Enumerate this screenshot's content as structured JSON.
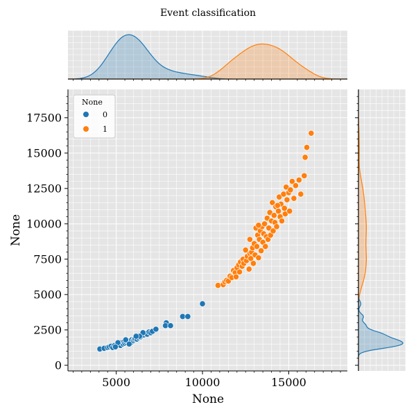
{
  "chart_data": {
    "type": "scatter",
    "title": "Event classification",
    "xlabel": "None",
    "ylabel": "None",
    "xlim": [
      2200,
      18400
    ],
    "ylim": [
      -400,
      19500
    ],
    "xticks": [
      5000,
      10000,
      15000
    ],
    "yticks": [
      0,
      2500,
      5000,
      7500,
      10000,
      12500,
      15000,
      17500
    ],
    "xtick_labels": [
      "5000",
      "10000",
      "15000"
    ],
    "ytick_labels": [
      "0",
      "2500",
      "5000",
      "7500",
      "10000",
      "12500",
      "15000",
      "17500"
    ],
    "grid": true,
    "legend": {
      "title": "None",
      "placement": "top-left"
    },
    "colors": {
      "0": "#1f77b4",
      "1": "#ff7f0e",
      "background": "#e5e5e5"
    },
    "series": [
      {
        "name": "0",
        "color": "#1f77b4",
        "points": [
          [
            4050,
            1150
          ],
          [
            4300,
            1200
          ],
          [
            4500,
            1250
          ],
          [
            4600,
            1300
          ],
          [
            4700,
            1350
          ],
          [
            4800,
            1250
          ],
          [
            4900,
            1400
          ],
          [
            5000,
            1350
          ],
          [
            5100,
            1450
          ],
          [
            5200,
            1500
          ],
          [
            5250,
            1400
          ],
          [
            5300,
            1600
          ],
          [
            5400,
            1500
          ],
          [
            5450,
            1650
          ],
          [
            5500,
            1550
          ],
          [
            5600,
            1600
          ],
          [
            5650,
            1700
          ],
          [
            5700,
            1650
          ],
          [
            5800,
            1750
          ],
          [
            5850,
            1600
          ],
          [
            5900,
            1800
          ],
          [
            6000,
            1750
          ],
          [
            6050,
            1850
          ],
          [
            6100,
            1900
          ],
          [
            6200,
            1850
          ],
          [
            6300,
            1950
          ],
          [
            6400,
            2000
          ],
          [
            6500,
            2100
          ],
          [
            6600,
            2150
          ],
          [
            6700,
            2250
          ],
          [
            6800,
            2200
          ],
          [
            6900,
            2350
          ],
          [
            7000,
            2300
          ],
          [
            7100,
            2400
          ],
          [
            7300,
            2550
          ],
          [
            6550,
            2300
          ],
          [
            7900,
            3000
          ],
          [
            7850,
            2800
          ],
          [
            8150,
            2800
          ],
          [
            8850,
            3450
          ],
          [
            9150,
            3450
          ],
          [
            10000,
            4350
          ],
          [
            5100,
            1600
          ],
          [
            5550,
            1800
          ],
          [
            6350,
            2050
          ],
          [
            4950,
            1300
          ],
          [
            6150,
            2050
          ],
          [
            5750,
            1500
          ]
        ]
      },
      {
        "name": "1",
        "color": "#ff7f0e",
        "points": [
          [
            10900,
            5650
          ],
          [
            11200,
            5700
          ],
          [
            11300,
            5900
          ],
          [
            11400,
            6000
          ],
          [
            11500,
            5950
          ],
          [
            11600,
            6300
          ],
          [
            11700,
            6200
          ],
          [
            11800,
            6700
          ],
          [
            11900,
            6550
          ],
          [
            11950,
            6250
          ],
          [
            12000,
            6900
          ],
          [
            12100,
            7100
          ],
          [
            12150,
            6600
          ],
          [
            12200,
            7300
          ],
          [
            12300,
            7000
          ],
          [
            12350,
            7500
          ],
          [
            12400,
            7200
          ],
          [
            12500,
            8150
          ],
          [
            12550,
            7400
          ],
          [
            12600,
            7700
          ],
          [
            12700,
            6800
          ],
          [
            12750,
            7900
          ],
          [
            12800,
            7550
          ],
          [
            12850,
            8000
          ],
          [
            12900,
            8300
          ],
          [
            12950,
            7200
          ],
          [
            13000,
            8600
          ],
          [
            13050,
            7800
          ],
          [
            13100,
            9700
          ],
          [
            13150,
            8400
          ],
          [
            13200,
            9200
          ],
          [
            13250,
            7600
          ],
          [
            13300,
            8900
          ],
          [
            13350,
            9500
          ],
          [
            13400,
            8100
          ],
          [
            13450,
            9800
          ],
          [
            13500,
            8700
          ],
          [
            13550,
            9300
          ],
          [
            13600,
            10000
          ],
          [
            13650,
            8400
          ],
          [
            13700,
            9100
          ],
          [
            13750,
            10400
          ],
          [
            13800,
            8900
          ],
          [
            13850,
            9700
          ],
          [
            13900,
            10800
          ],
          [
            13950,
            9200
          ],
          [
            14000,
            10200
          ],
          [
            14050,
            11500
          ],
          [
            14100,
            9500
          ],
          [
            14150,
            10600
          ],
          [
            14200,
            10100
          ],
          [
            14250,
            11200
          ],
          [
            14300,
            9800
          ],
          [
            14400,
            10900
          ],
          [
            14450,
            11900
          ],
          [
            14500,
            10500
          ],
          [
            14550,
            11400
          ],
          [
            14600,
            10200
          ],
          [
            14700,
            12100
          ],
          [
            14750,
            11100
          ],
          [
            14800,
            10700
          ],
          [
            14850,
            12600
          ],
          [
            14900,
            11700
          ],
          [
            15000,
            12200
          ],
          [
            15050,
            10900
          ],
          [
            15100,
            12400
          ],
          [
            15200,
            13000
          ],
          [
            15300,
            11800
          ],
          [
            15400,
            12700
          ],
          [
            15600,
            13100
          ],
          [
            15700,
            12100
          ],
          [
            15900,
            13400
          ],
          [
            15950,
            14700
          ],
          [
            16050,
            15400
          ],
          [
            16300,
            16400
          ],
          [
            12750,
            8900
          ],
          [
            13250,
            9900
          ],
          [
            14350,
            11300
          ]
        ]
      }
    ]
  }
}
